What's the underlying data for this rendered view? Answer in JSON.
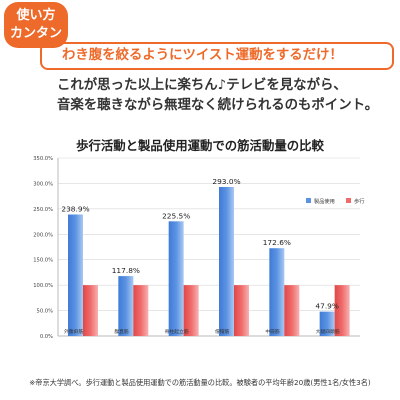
{
  "badge": {
    "line1": "使い方",
    "line2": "カンタン"
  },
  "headline": "わき腹を絞るようにツイスト運動をするだけ！",
  "description": [
    "これが思った以上に楽ちん♪テレビを見ながら、",
    "音楽を聴きながら無理なく続けられるのもポイント。"
  ],
  "footnote": "※帝京大学調べ。歩行運動と製品使用運動での筋活動量の比較。被験者の平均年齢20歳(男性1名/女性3名)",
  "colors": {
    "accent": "#ee6a2a",
    "product": "#5b93e3",
    "walking": "#f06b6b"
  },
  "chart_data": {
    "type": "bar",
    "title": "歩行活動と製品使用運動での筋活動量の比較",
    "categories": [
      "外腹斜筋",
      "腹直筋",
      "脊柱起立筋",
      "僧帽筋",
      "中殿筋",
      "大腿四頭筋"
    ],
    "series": [
      {
        "name": "製品使用",
        "values": [
          238.9,
          117.8,
          225.5,
          293.0,
          172.6,
          47.9
        ],
        "labels": [
          "238.9%",
          "117.8%",
          "225.5%",
          "293.0%",
          "172.6%",
          "47.9%"
        ]
      },
      {
        "name": "歩行",
        "values": [
          100,
          100,
          100,
          100,
          100,
          100
        ]
      }
    ],
    "ylim": [
      0,
      350
    ],
    "yticks": [
      "0.0%",
      "50.0%",
      "100.0%",
      "150.0%",
      "200.0%",
      "250.0%",
      "300.0%",
      "350.0%"
    ],
    "ytick_values": [
      0,
      50,
      100,
      150,
      200,
      250,
      300,
      350
    ],
    "grid": true,
    "legend": "right"
  }
}
